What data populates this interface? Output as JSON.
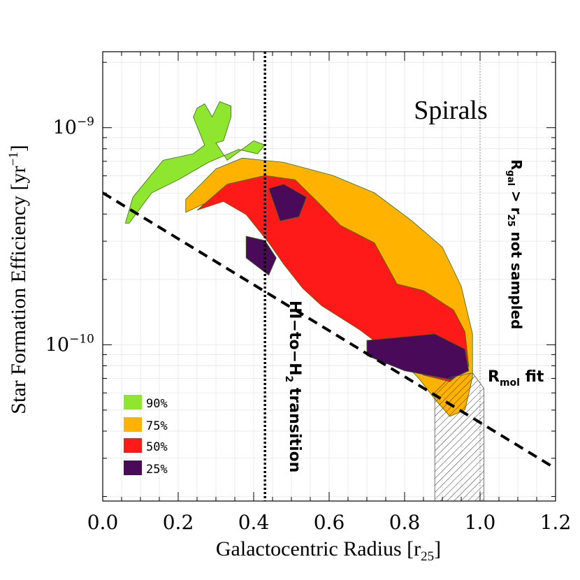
{
  "chart_data": {
    "type": "contour",
    "title": "Spirals",
    "xlabel": "Galactocentric Radius [r",
    "xlabel_sub": "25",
    "xlabel_end": "]",
    "ylabel": "Star Formation Efficiency [yr",
    "ylabel_sup": "−1",
    "ylabel_end": "]",
    "xlim": [
      0.0,
      1.2
    ],
    "ylim_log10": [
      -10.72,
      -8.65
    ],
    "x_ticks": [
      {
        "value": 0.0,
        "label": "0.0"
      },
      {
        "value": 0.2,
        "label": "0.2"
      },
      {
        "value": 0.4,
        "label": "0.4"
      },
      {
        "value": 0.6,
        "label": "0.6"
      },
      {
        "value": 0.8,
        "label": "0.8"
      },
      {
        "value": 1.0,
        "label": "1.0"
      },
      {
        "value": 1.2,
        "label": "1.2"
      }
    ],
    "y_ticks": [
      {
        "log10": -9,
        "base": "10",
        "exp": "−9"
      },
      {
        "log10": -10,
        "base": "10",
        "exp": "−10"
      }
    ],
    "contour_levels": [
      {
        "name": "90%",
        "color": "#8ee62e",
        "polygon": [
          [
            0.07,
            -9.44
          ],
          [
            0.13,
            -9.3
          ],
          [
            0.2,
            -9.24
          ],
          [
            0.28,
            -9.16
          ],
          [
            0.36,
            -9.1
          ],
          [
            0.41,
            -9.12
          ],
          [
            0.43,
            -9.08
          ],
          [
            0.4,
            -9.06
          ],
          [
            0.33,
            -9.15
          ],
          [
            0.3,
            -9.07
          ],
          [
            0.32,
            -9.06
          ],
          [
            0.34,
            -8.95
          ],
          [
            0.34,
            -8.9
          ],
          [
            0.31,
            -8.88
          ],
          [
            0.29,
            -8.95
          ],
          [
            0.27,
            -8.89
          ],
          [
            0.25,
            -8.91
          ],
          [
            0.24,
            -8.95
          ],
          [
            0.27,
            -9.08
          ],
          [
            0.24,
            -9.12
          ],
          [
            0.16,
            -9.15
          ],
          [
            0.08,
            -9.32
          ],
          [
            0.06,
            -9.44
          ],
          [
            0.07,
            -9.44
          ]
        ]
      },
      {
        "name": "75%",
        "color": "#ffb300",
        "polygon": [
          [
            0.22,
            -9.39
          ],
          [
            0.27,
            -9.35
          ],
          [
            0.34,
            -9.32
          ],
          [
            0.4,
            -9.33
          ],
          [
            0.45,
            -9.48
          ],
          [
            0.5,
            -9.62
          ],
          [
            0.55,
            -9.74
          ],
          [
            0.6,
            -9.82
          ],
          [
            0.68,
            -9.9
          ],
          [
            0.78,
            -10.05
          ],
          [
            0.84,
            -10.16
          ],
          [
            0.88,
            -10.25
          ],
          [
            0.92,
            -10.33
          ],
          [
            0.96,
            -10.3
          ],
          [
            0.98,
            -10.15
          ],
          [
            0.98,
            -9.95
          ],
          [
            0.95,
            -9.73
          ],
          [
            0.9,
            -9.55
          ],
          [
            0.82,
            -9.43
          ],
          [
            0.72,
            -9.3
          ],
          [
            0.61,
            -9.22
          ],
          [
            0.48,
            -9.16
          ],
          [
            0.37,
            -9.14
          ],
          [
            0.3,
            -9.19
          ],
          [
            0.26,
            -9.26
          ],
          [
            0.22,
            -9.33
          ],
          [
            0.22,
            -9.39
          ]
        ]
      },
      {
        "name": "50%",
        "color": "#ff1a1a",
        "polygon": [
          [
            0.25,
            -9.38
          ],
          [
            0.32,
            -9.34
          ],
          [
            0.38,
            -9.4
          ],
          [
            0.44,
            -9.53
          ],
          [
            0.48,
            -9.63
          ],
          [
            0.53,
            -9.74
          ],
          [
            0.58,
            -9.82
          ],
          [
            0.68,
            -9.93
          ],
          [
            0.78,
            -10.06
          ],
          [
            0.85,
            -10.14
          ],
          [
            0.92,
            -10.17
          ],
          [
            0.97,
            -10.1
          ],
          [
            0.96,
            -9.94
          ],
          [
            0.93,
            -9.84
          ],
          [
            0.85,
            -9.75
          ],
          [
            0.78,
            -9.72
          ],
          [
            0.72,
            -9.53
          ],
          [
            0.63,
            -9.45
          ],
          [
            0.58,
            -9.36
          ],
          [
            0.51,
            -9.24
          ],
          [
            0.43,
            -9.22
          ],
          [
            0.33,
            -9.26
          ],
          [
            0.25,
            -9.38
          ]
        ]
      },
      {
        "name": "25%",
        "color": "#4a0a5a",
        "polygon": [
          [
            0.44,
            -9.28
          ],
          [
            0.48,
            -9.26
          ],
          [
            0.54,
            -9.32
          ],
          [
            0.52,
            -9.41
          ],
          [
            0.47,
            -9.43
          ],
          [
            0.44,
            -9.28
          ]
        ]
      }
    ],
    "fit_line": {
      "name": "R_mol fit",
      "x": [
        0.0,
        1.2
      ],
      "log10_y": [
        -9.3,
        -10.57
      ]
    },
    "transition_x": 0.43,
    "sample_limit_x": 1.0,
    "annotations": [
      {
        "text": "HI−to−H",
        "sub": "2",
        "end": " transition"
      },
      {
        "text": "R",
        "sub": "gal",
        "mid": " > r",
        "sub2": "25",
        "end": " not sampled"
      },
      {
        "text": "R",
        "sub": "mol",
        "end": "  fit"
      }
    ],
    "legend": [
      {
        "label": "90%",
        "color": "#8ee62e"
      },
      {
        "label": "75%",
        "color": "#ffb300"
      },
      {
        "label": "50%",
        "color": "#ff1a1a"
      },
      {
        "label": "25%",
        "color": "#4a0a5a"
      }
    ]
  }
}
